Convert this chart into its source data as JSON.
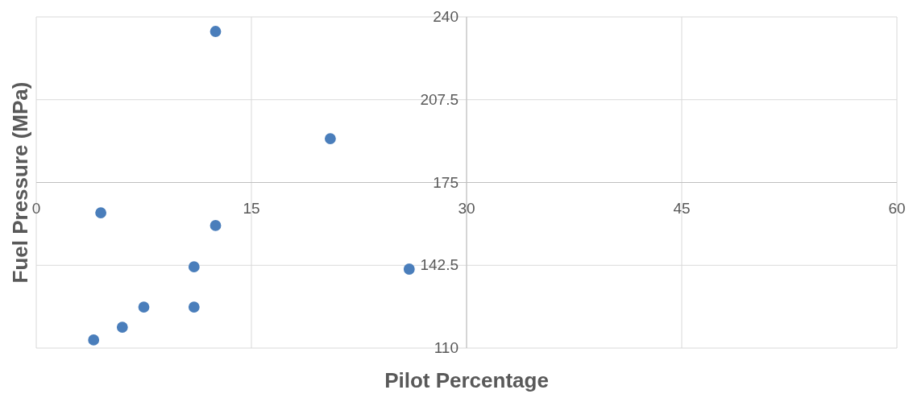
{
  "chart_data": {
    "type": "scatter",
    "xlabel": "Pilot Percentage",
    "ylabel": "Fuel Pressure (MPa)",
    "xlim": [
      0,
      60
    ],
    "xticks": [
      0,
      15,
      30,
      45,
      60
    ],
    "ylim": [
      110,
      240
    ],
    "yticks": [
      110,
      142.5,
      175,
      207.5,
      240
    ],
    "grid": true,
    "marker": "circle",
    "series": [
      {
        "color": "#4a7ebb",
        "x": [
          12.5,
          20.5,
          4.5,
          12.5,
          11,
          26,
          7.5,
          11,
          6,
          4
        ],
        "values": [
          234.3,
          192.2,
          163.1,
          158.1,
          141.9,
          141,
          126.1,
          126.1,
          118.2,
          113.2
        ]
      }
    ]
  }
}
